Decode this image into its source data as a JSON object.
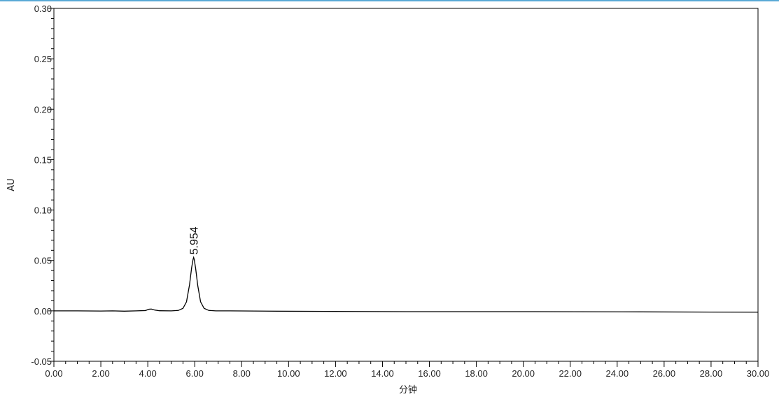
{
  "chart_data": {
    "type": "line",
    "title": "",
    "xlabel": "分钟",
    "ylabel": "AU",
    "xlim": [
      0,
      30
    ],
    "ylim": [
      -0.05,
      0.3
    ],
    "grid": false,
    "xticks": [
      "0.00",
      "2.00",
      "4.00",
      "6.00",
      "8.00",
      "10.00",
      "12.00",
      "14.00",
      "16.00",
      "18.00",
      "20.00",
      "22.00",
      "24.00",
      "26.00",
      "28.00",
      "30.00"
    ],
    "yticks": [
      "-0.05",
      "0.00",
      "0.05",
      "0.10",
      "0.15",
      "0.20",
      "0.25",
      "0.30"
    ],
    "peaks": [
      {
        "label": "5.954",
        "x": 5.954,
        "y": 0.053
      }
    ],
    "series": [
      {
        "color": "#000000",
        "x": [
          0,
          1,
          2,
          2.5,
          3,
          3.5,
          3.9,
          4.05,
          4.15,
          4.3,
          4.5,
          5.0,
          5.3,
          5.5,
          5.65,
          5.78,
          5.87,
          5.93,
          5.954,
          5.98,
          6.04,
          6.13,
          6.25,
          6.4,
          6.6,
          6.9,
          7.5,
          10,
          15,
          20,
          25,
          28,
          30
        ],
        "y": [
          0.0,
          0.0,
          -0.0002,
          0.0,
          -0.0003,
          0.0,
          0.0003,
          0.0016,
          0.0018,
          0.0008,
          0.0001,
          0.0,
          0.0004,
          0.0025,
          0.009,
          0.026,
          0.043,
          0.051,
          0.053,
          0.051,
          0.042,
          0.025,
          0.009,
          0.0025,
          0.0004,
          0.0,
          0.0,
          -0.0004,
          -0.0008,
          -0.0008,
          -0.001,
          -0.0012,
          -0.0013
        ]
      }
    ]
  },
  "colors": {
    "frame": "#000000",
    "top_rule": "#5aa9d6",
    "trace": "#000000"
  }
}
